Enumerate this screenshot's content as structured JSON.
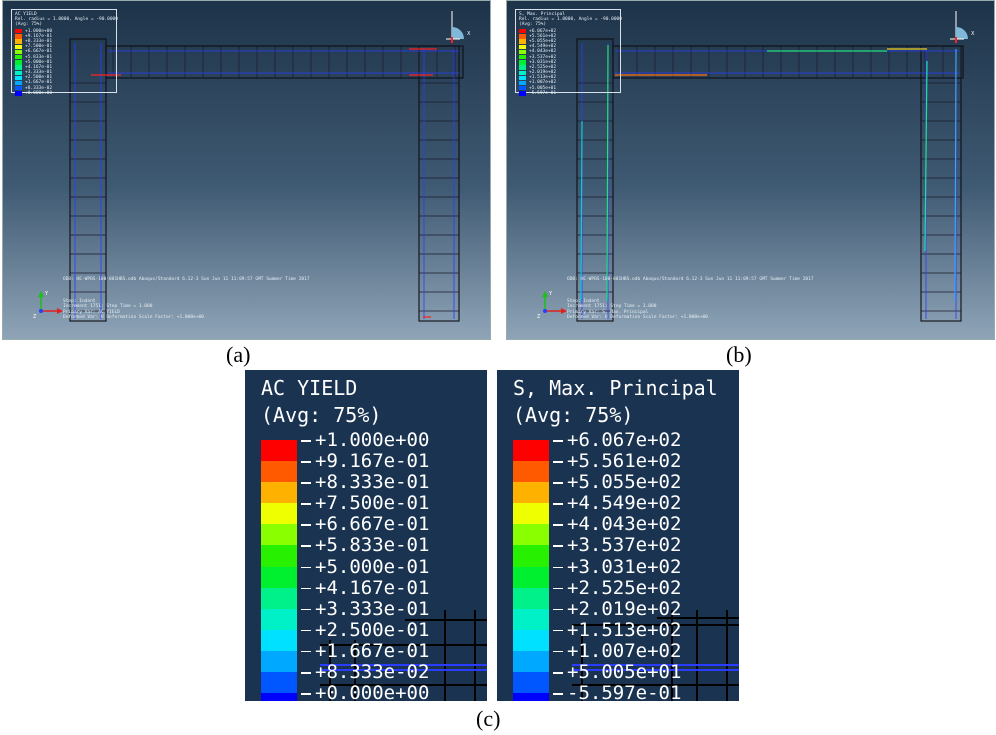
{
  "panels": [
    {
      "id": "a",
      "caption": "(a)",
      "legend_title": "AC YIELD",
      "legend_sub": "Rel. radius = 1.0000, Angle = -90.0000",
      "legend_avg": "(Avg: 75%)",
      "values": [
        "+1.000e+00",
        "+9.167e-01",
        "+8.333e-01",
        "+7.500e-01",
        "+6.667e-01",
        "+5.833e-01",
        "+5.000e-01",
        "+4.167e-01",
        "+3.333e-01",
        "+2.500e-01",
        "+1.667e-01",
        "+8.333e-02",
        "+0.000e+00"
      ],
      "footer_info": "ODB: HE-WPBS-100-001HBS.odb    Abaqus/Standard 6.12-3    Sun Jun 11 11:09:57 GMT Summer Time 2017",
      "step_lines": [
        "Step: Indent",
        "Increment    1751: Step Time =    1.000",
        "Primary Var: AC YIELD",
        "Deformed Var: U   Deformation Scale Factor: +1.000e+00"
      ]
    },
    {
      "id": "b",
      "caption": "(b)",
      "legend_title": "S, Max. Principal",
      "legend_sub": "Rel. radius = 1.0000, Angle = -90.0000",
      "legend_avg": "(Avg: 75%)",
      "values": [
        "+6.067e+02",
        "+5.561e+02",
        "+5.055e+02",
        "+4.549e+02",
        "+4.043e+02",
        "+3.537e+02",
        "+3.031e+02",
        "+2.525e+02",
        "+2.019e+02",
        "+1.513e+02",
        "+1.007e+02",
        "+5.005e+01",
        "-5.597e-01"
      ],
      "footer_info": "ODB: HE-WPBS-100-001HBS.odb    Abaqus/Standard 6.12-3    Sun Jun 11 11:09:57 GMT Summer Time 2017",
      "step_lines": [
        "Step: Indent",
        "Increment    1751: Step Time =    1.000",
        "Primary Var: S, Max. Principal",
        "Deformed Var: U   Deformation Scale Factor: +1.000e+00"
      ]
    }
  ],
  "zoom_legends": [
    {
      "title": "AC YIELD",
      "avg": "(Avg: 75%)",
      "values": [
        "+1.000e+00",
        "+9.167e-01",
        "+8.333e-01",
        "+7.500e-01",
        "+6.667e-01",
        "+5.833e-01",
        "+5.000e-01",
        "+4.167e-01",
        "+3.333e-01",
        "+2.500e-01",
        "+1.667e-01",
        "+8.333e-02",
        "+0.000e+00"
      ]
    },
    {
      "title": "S, Max. Principal",
      "avg": "(Avg: 75%)",
      "values": [
        "+6.067e+02",
        "+5.561e+02",
        "+5.055e+02",
        "+4.549e+02",
        "+4.043e+02",
        "+3.537e+02",
        "+3.031e+02",
        "+2.525e+02",
        "+2.019e+02",
        "+1.513e+02",
        "+1.007e+02",
        "+5.005e+01",
        "-5.597e-01"
      ]
    }
  ],
  "caption_c": "(c)",
  "axis_labels": {
    "x": "X",
    "y": "Y",
    "z": "Z"
  },
  "contour_colors": [
    "#ff0000",
    "#ff5a00",
    "#ffb100",
    "#f0ff00",
    "#8aff00",
    "#27f000",
    "#00f030",
    "#00f08a",
    "#00f0c8",
    "#00e0ff",
    "#00a8ff",
    "#0056ff",
    "#0000ff"
  ]
}
